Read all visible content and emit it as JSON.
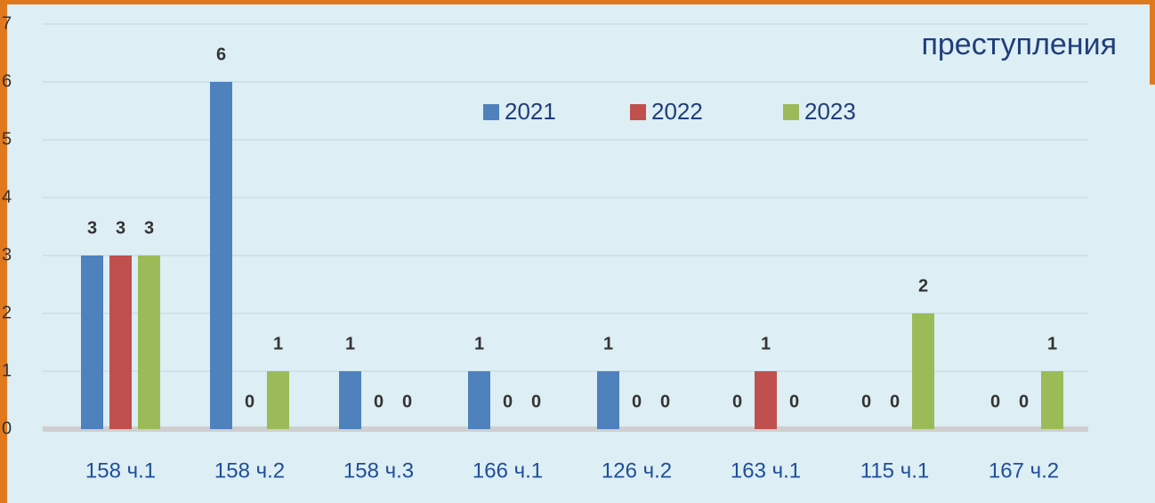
{
  "chart_data": {
    "type": "bar",
    "title": "преступления",
    "categories": [
      "158 ч.1",
      "158 ч.2",
      "158 ч.3",
      "166 ч.1",
      "126 ч.2",
      "163 ч.1",
      "115 ч.1",
      "167 ч.2"
    ],
    "series": [
      {
        "name": "2021",
        "color": "#4f81bd",
        "values": [
          3,
          6,
          1,
          1,
          1,
          0,
          0,
          0
        ]
      },
      {
        "name": "2022",
        "color": "#c0504d",
        "values": [
          3,
          0,
          0,
          0,
          0,
          1,
          0,
          0
        ]
      },
      {
        "name": "2023",
        "color": "#9bbb59",
        "values": [
          3,
          1,
          0,
          0,
          0,
          0,
          2,
          1
        ]
      }
    ],
    "ylim": [
      0,
      7
    ],
    "yticks": [
      0,
      1,
      2,
      3,
      4,
      5,
      6,
      7
    ],
    "grid": true
  }
}
